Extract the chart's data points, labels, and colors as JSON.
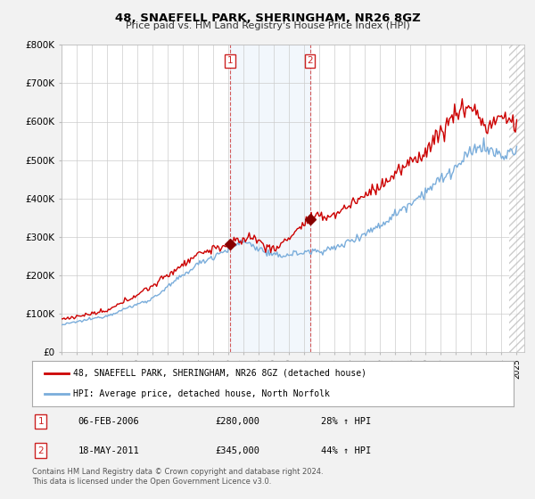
{
  "title": "48, SNAEFELL PARK, SHERINGHAM, NR26 8GZ",
  "subtitle": "Price paid vs. HM Land Registry's House Price Index (HPI)",
  "ylabel_ticks": [
    "£0",
    "£100K",
    "£200K",
    "£300K",
    "£400K",
    "£500K",
    "£600K",
    "£700K",
    "£800K"
  ],
  "ytick_values": [
    0,
    100000,
    200000,
    300000,
    400000,
    500000,
    600000,
    700000,
    800000
  ],
  "ylim": [
    0,
    800000
  ],
  "xlim_start": 1995.0,
  "xlim_end": 2025.5,
  "hatch_start": 2024.5,
  "sale1_x": 2006.09,
  "sale1_y": 280000,
  "sale2_x": 2011.37,
  "sale2_y": 345000,
  "vline1_x": 2006.09,
  "vline2_x": 2011.37,
  "red_color": "#cc0000",
  "blue_color": "#7aaddb",
  "legend_line1": "48, SNAEFELL PARK, SHERINGHAM, NR26 8GZ (detached house)",
  "legend_line2": "HPI: Average price, detached house, North Norfolk",
  "table_row1": [
    "1",
    "06-FEB-2006",
    "£280,000",
    "28% ↑ HPI"
  ],
  "table_row2": [
    "2",
    "18-MAY-2011",
    "£345,000",
    "44% ↑ HPI"
  ],
  "footnote": "Contains HM Land Registry data © Crown copyright and database right 2024.\nThis data is licensed under the Open Government Licence v3.0.",
  "background_color": "#f2f2f2",
  "plot_bg_color": "#ffffff",
  "grid_color": "#cccccc",
  "span_color": "#ddeeff"
}
